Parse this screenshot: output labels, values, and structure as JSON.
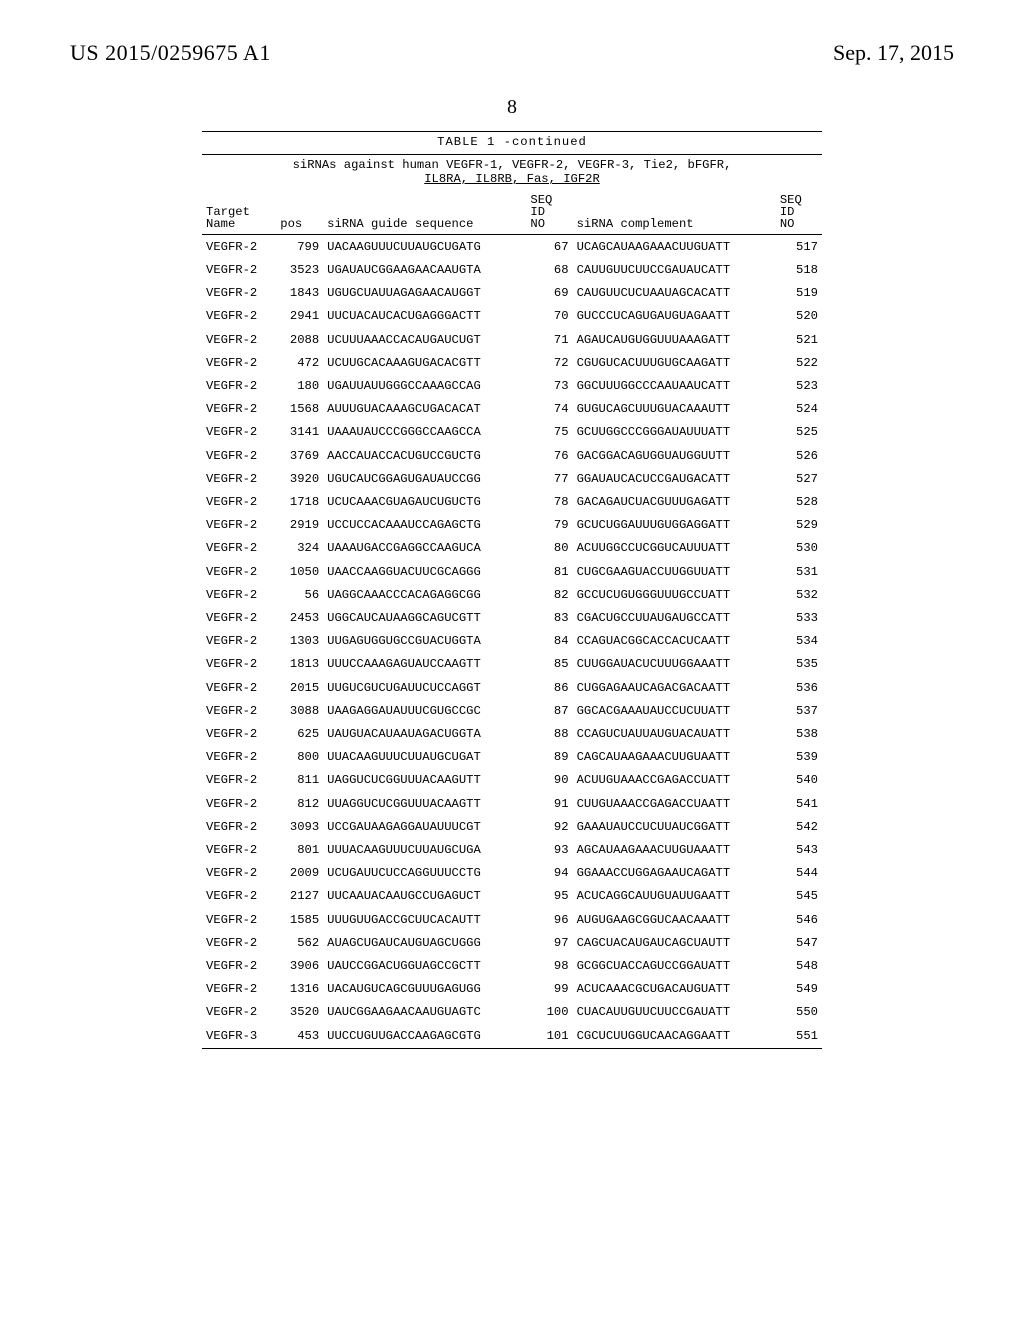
{
  "header": {
    "pub_number": "US 2015/0259675 A1",
    "pub_date": "Sep. 17, 2015",
    "page_number": "8"
  },
  "table": {
    "caption": "TABLE 1 -continued",
    "subtitle_line1": "siRNAs against human VEGFR-1, VEGFR-2, VEGFR-3, Tie2, bFGFR,",
    "subtitle_line2": "IL8RA, IL8RB, Fas, IGF2R",
    "col_headers": {
      "target": "Target\nName",
      "pos": "pos",
      "guide": "siRNA guide sequence",
      "seq1": "SEQ\nID\nNO",
      "complement": "siRNA complement",
      "seq2": "SEQ\nID\nNO"
    },
    "rows": [
      {
        "target": "VEGFR-2",
        "pos": "799",
        "guide": "UACAAGUUUCUUAUGCUGATG",
        "seq1": "67",
        "comp": "UCAGCAUAAGAAACUUGUATT",
        "seq2": "517"
      },
      {
        "target": "VEGFR-2",
        "pos": "3523",
        "guide": "UGAUAUCGGAAGAACAAUGTA",
        "seq1": "68",
        "comp": "CAUUGUUCUUCCGAUAUCATT",
        "seq2": "518"
      },
      {
        "target": "VEGFR-2",
        "pos": "1843",
        "guide": "UGUGCUAUUAGAGAACAUGGT",
        "seq1": "69",
        "comp": "CAUGUUCUCUAAUAGCACATT",
        "seq2": "519"
      },
      {
        "target": "VEGFR-2",
        "pos": "2941",
        "guide": "UUCUACAUCACUGAGGGACTT",
        "seq1": "70",
        "comp": "GUCCCUCAGUGAUGUAGAATT",
        "seq2": "520"
      },
      {
        "target": "VEGFR-2",
        "pos": "2088",
        "guide": "UCUUUAAACCACAUGAUCUGT",
        "seq1": "71",
        "comp": "AGAUCAUGUGGUUUAAAGATT",
        "seq2": "521"
      },
      {
        "target": "VEGFR-2",
        "pos": "472",
        "guide": "UCUUGCACAAAGUGACACGTT",
        "seq1": "72",
        "comp": "CGUGUCACUUUGUGCAAGATT",
        "seq2": "522"
      },
      {
        "target": "VEGFR-2",
        "pos": "180",
        "guide": "UGAUUAUUGGGCCAAAGCCAG",
        "seq1": "73",
        "comp": "GGCUUUGGCCCAAUAAUCATT",
        "seq2": "523"
      },
      {
        "target": "VEGFR-2",
        "pos": "1568",
        "guide": "AUUUGUACAAAGCUGACACAT",
        "seq1": "74",
        "comp": "GUGUCAGCUUUGUACAAAUTT",
        "seq2": "524"
      },
      {
        "target": "VEGFR-2",
        "pos": "3141",
        "guide": "UAAAUAUCCCGGGCCAAGCCA",
        "seq1": "75",
        "comp": "GCUUGGCCCGGGAUAUUUATT",
        "seq2": "525"
      },
      {
        "target": "VEGFR-2",
        "pos": "3769",
        "guide": "AACCAUACCACUGUCCGUCTG",
        "seq1": "76",
        "comp": "GACGGACAGUGGUAUGGUUTT",
        "seq2": "526"
      },
      {
        "target": "VEGFR-2",
        "pos": "3920",
        "guide": "UGUCAUCGGAGUGAUAUCCGG",
        "seq1": "77",
        "comp": "GGAUAUCACUCCGAUGACATT",
        "seq2": "527"
      },
      {
        "target": "VEGFR-2",
        "pos": "1718",
        "guide": "UCUCAAACGUAGAUCUGUCTG",
        "seq1": "78",
        "comp": "GACAGAUCUACGUUUGAGATT",
        "seq2": "528"
      },
      {
        "target": "VEGFR-2",
        "pos": "2919",
        "guide": "UCCUCCACAAAUCCAGAGCTG",
        "seq1": "79",
        "comp": "GCUCUGGAUUUGUGGAGGATT",
        "seq2": "529"
      },
      {
        "target": "VEGFR-2",
        "pos": "324",
        "guide": "UAAAUGACCGAGGCCAAGUCA",
        "seq1": "80",
        "comp": "ACUUGGCCUCGGUCAUUUATT",
        "seq2": "530"
      },
      {
        "target": "VEGFR-2",
        "pos": "1050",
        "guide": "UAACCAAGGUACUUCGCAGGG",
        "seq1": "81",
        "comp": "CUGCGAAGUACCUUGGUUATT",
        "seq2": "531"
      },
      {
        "target": "VEGFR-2",
        "pos": "56",
        "guide": "UAGGCAAACCCACAGAGGCGG",
        "seq1": "82",
        "comp": "GCCUCUGUGGGUUUGCCUATT",
        "seq2": "532"
      },
      {
        "target": "VEGFR-2",
        "pos": "2453",
        "guide": "UGGCAUCAUAAGGCAGUCGTT",
        "seq1": "83",
        "comp": "CGACUGCCUUAUGAUGCCATT",
        "seq2": "533"
      },
      {
        "target": "VEGFR-2",
        "pos": "1303",
        "guide": "UUGAGUGGUGCCGUACUGGTA",
        "seq1": "84",
        "comp": "CCAGUACGGCACCACUCAATT",
        "seq2": "534"
      },
      {
        "target": "VEGFR-2",
        "pos": "1813",
        "guide": "UUUCCAAAGAGUAUCCAAGTT",
        "seq1": "85",
        "comp": "CUUGGAUACUCUUUGGAAATT",
        "seq2": "535"
      },
      {
        "target": "VEGFR-2",
        "pos": "2015",
        "guide": "UUGUCGUCUGAUUCUCCAGGT",
        "seq1": "86",
        "comp": "CUGGAGAAUCAGACGACAATT",
        "seq2": "536"
      },
      {
        "target": "VEGFR-2",
        "pos": "3088",
        "guide": "UAAGAGGAUAUUUCGUGCCGC",
        "seq1": "87",
        "comp": "GGCACGAAAUAUCCUCUUATT",
        "seq2": "537"
      },
      {
        "target": "VEGFR-2",
        "pos": "625",
        "guide": "UAUGUACAUAAUAGACUGGTA",
        "seq1": "88",
        "comp": "CCAGUCUAUUAUGUACAUATT",
        "seq2": "538"
      },
      {
        "target": "VEGFR-2",
        "pos": "800",
        "guide": "UUACAAGUUUCUUAUGCUGAT",
        "seq1": "89",
        "comp": "CAGCAUAAGAAACUUGUAATT",
        "seq2": "539"
      },
      {
        "target": "VEGFR-2",
        "pos": "811",
        "guide": "UAGGUCUCGGUUUACAAGUTT",
        "seq1": "90",
        "comp": "ACUUGUAAACCGAGACCUATT",
        "seq2": "540"
      },
      {
        "target": "VEGFR-2",
        "pos": "812",
        "guide": "UUAGGUCUCGGUUUACAAGTT",
        "seq1": "91",
        "comp": "CUUGUAAACCGAGACCUAATT",
        "seq2": "541"
      },
      {
        "target": "VEGFR-2",
        "pos": "3093",
        "guide": "UCCGAUAAGAGGAUAUUUCGT",
        "seq1": "92",
        "comp": "GAAAUAUCCUCUUAUCGGATT",
        "seq2": "542"
      },
      {
        "target": "VEGFR-2",
        "pos": "801",
        "guide": "UUUACAAGUUUCUUAUGCUGA",
        "seq1": "93",
        "comp": "AGCAUAAGAAACUUGUAAATT",
        "seq2": "543"
      },
      {
        "target": "VEGFR-2",
        "pos": "2009",
        "guide": "UCUGAUUCUCCAGGUUUCCTG",
        "seq1": "94",
        "comp": "GGAAACCUGGAGAAUCAGATT",
        "seq2": "544"
      },
      {
        "target": "VEGFR-2",
        "pos": "2127",
        "guide": "UUCAAUACAAUGCCUGAGUCT",
        "seq1": "95",
        "comp": "ACUCAGGCAUUGUAUUGAATT",
        "seq2": "545"
      },
      {
        "target": "VEGFR-2",
        "pos": "1585",
        "guide": "UUUGUUGACCGCUUCACAUTT",
        "seq1": "96",
        "comp": "AUGUGAAGCGGUCAACAAATT",
        "seq2": "546"
      },
      {
        "target": "VEGFR-2",
        "pos": "562",
        "guide": "AUAGCUGAUCAUGUAGCUGGG",
        "seq1": "97",
        "comp": "CAGCUACAUGAUCAGCUAUTT",
        "seq2": "547"
      },
      {
        "target": "VEGFR-2",
        "pos": "3906",
        "guide": "UAUCCGGACUGGUAGCCGCTT",
        "seq1": "98",
        "comp": "GCGGCUACCAGUCCGGAUATT",
        "seq2": "548"
      },
      {
        "target": "VEGFR-2",
        "pos": "1316",
        "guide": "UACAUGUCAGCGUUUGAGUGG",
        "seq1": "99",
        "comp": "ACUCAAACGCUGACAUGUATT",
        "seq2": "549"
      },
      {
        "target": "VEGFR-2",
        "pos": "3520",
        "guide": "UAUCGGAAGAACAAUGUAGTC",
        "seq1": "100",
        "comp": "CUACAUUGUUCUUCCGAUATT",
        "seq2": "550"
      },
      {
        "target": "VEGFR-3",
        "pos": "453",
        "guide": "UUCCUGUUGACCAAGAGCGTG",
        "seq1": "101",
        "comp": "CGCUCUUGGUCAACAGGAATT",
        "seq2": "551"
      }
    ]
  }
}
